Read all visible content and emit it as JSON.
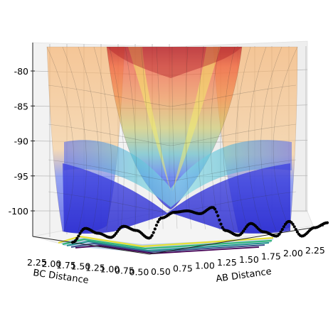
{
  "chart_data": {
    "type": "surface3d",
    "xlabel": "AB Distance",
    "ylabel": "BC Distance",
    "zlabel": "",
    "x_ticks": [
      "0.50",
      "0.75",
      "1.00",
      "1.25",
      "1.50",
      "1.75",
      "2.00",
      "2.25"
    ],
    "y_ticks": [
      "2.25",
      "2.00",
      "1.75",
      "1.50",
      "1.25",
      "1.00",
      "0.75",
      "0.50"
    ],
    "z_ticks": [
      "-80",
      "-85",
      "-90",
      "-95",
      "-100"
    ],
    "xlim": [
      0.5,
      2.3
    ],
    "ylim": [
      0.5,
      2.3
    ],
    "zlim": [
      -104,
      -76
    ],
    "grid": true,
    "colormap": "jet",
    "contour_colormap": "viridis",
    "surface_alpha": 0.5,
    "trajectory": {
      "marker": "black-dots",
      "color": "#000000",
      "z_profile": [
        -104.5,
        -102.5,
        -103.2,
        -103.8,
        -102.2,
        -102.8,
        -103.9,
        -101.0,
        -100.2,
        -100.0,
        -100.4,
        -99.5,
        -102.8,
        -103.5,
        -101.8,
        -103.0,
        -103.6,
        -101.5,
        -103.6,
        -102.4,
        -101.7
      ]
    }
  }
}
